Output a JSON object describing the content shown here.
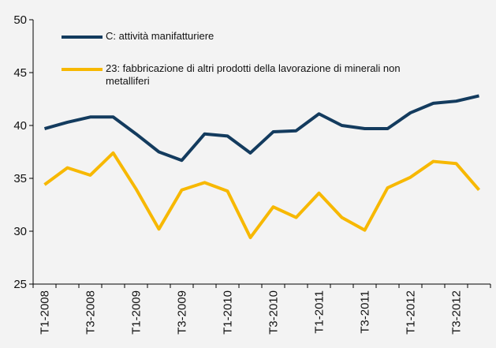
{
  "chart_data": {
    "type": "line",
    "categories": [
      "T1-2008",
      null,
      "T3-2008",
      null,
      "T1-2009",
      null,
      "T3-2009",
      null,
      "T1-2010",
      null,
      "T3-2010",
      null,
      "T1-2011",
      null,
      "T3-2011",
      null,
      "T1-2012",
      null,
      "T3-2012",
      null
    ],
    "series": [
      {
        "name": "C: attività manifatturiere",
        "color": "#133b5e",
        "values": [
          39.7,
          40.3,
          40.8,
          40.8,
          39.2,
          37.5,
          36.7,
          39.2,
          39.0,
          37.4,
          39.4,
          39.5,
          41.1,
          40.0,
          39.7,
          39.7,
          41.2,
          42.1,
          42.3,
          42.8
        ]
      },
      {
        "name": "23: fabbricazione di altri prodotti della lavorazione di minerali non metalliferi",
        "color": "#f7b800",
        "values": [
          34.4,
          36.0,
          35.3,
          37.4,
          34.0,
          30.2,
          33.9,
          34.6,
          33.8,
          29.4,
          32.3,
          31.3,
          33.6,
          31.3,
          30.1,
          34.1,
          35.1,
          36.6,
          36.4,
          33.9
        ]
      }
    ],
    "ylim": [
      25,
      50
    ],
    "yticks": [
      25,
      30,
      35,
      40,
      45,
      50
    ],
    "grid": false
  }
}
